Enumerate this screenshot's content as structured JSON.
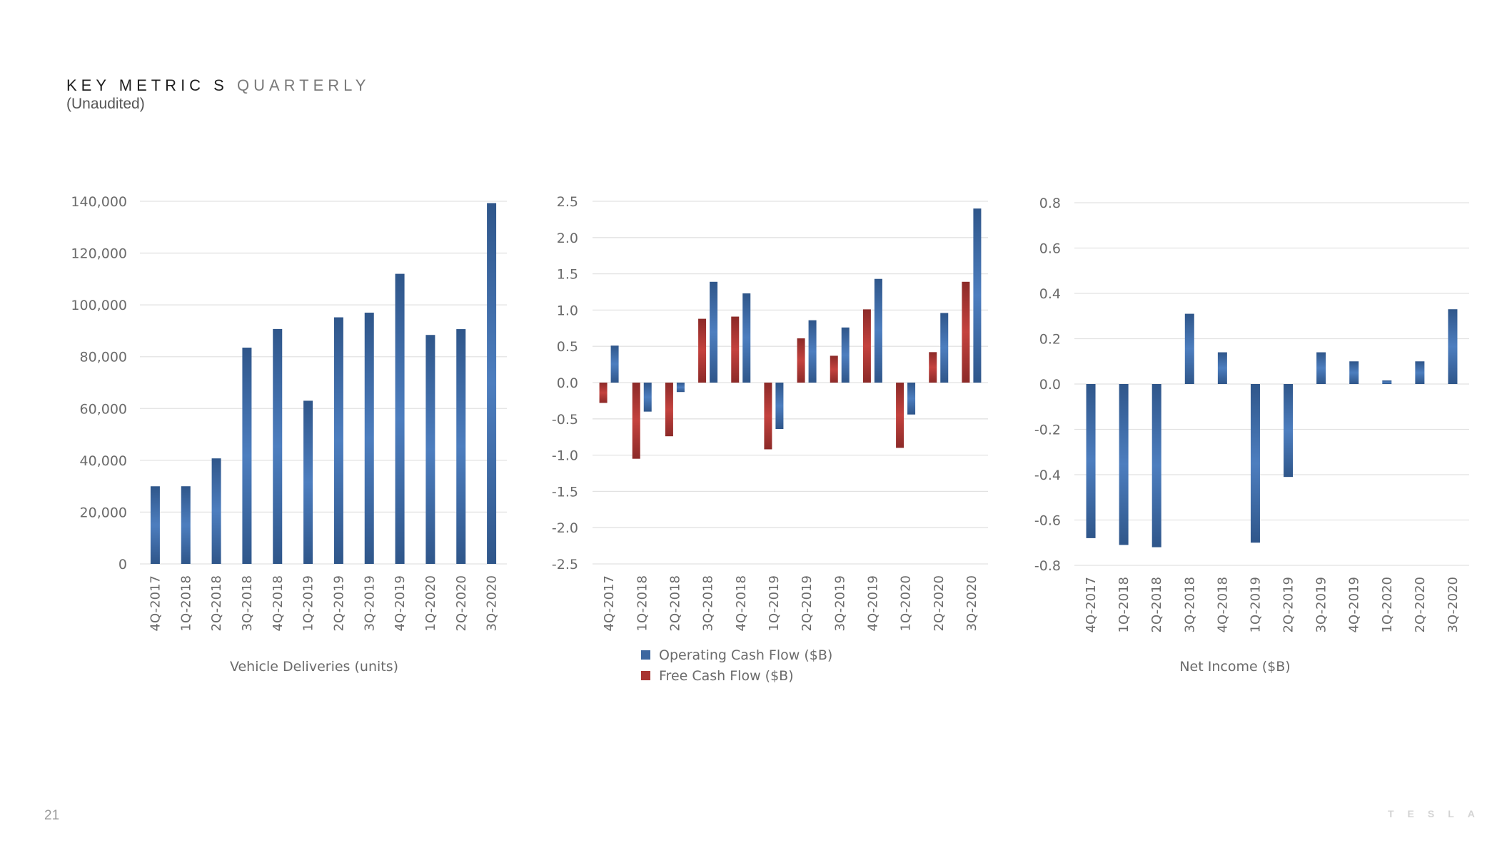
{
  "header": {
    "title_main": "KEY METRIC S",
    "title_sub": "QUARTERLY",
    "subtitle": "(Unaudited)"
  },
  "footer": {
    "page_number": "21",
    "logo_text": "TESLA"
  },
  "colors": {
    "blue": "#3d67a0",
    "red": "#a83532",
    "grid": "#e2e2e2",
    "text": "#6b6b6b"
  },
  "chart_data": [
    {
      "type": "bar",
      "xlabel": "Vehicle Deliveries (units)",
      "ylim": [
        0,
        140000
      ],
      "yticks": [
        "0",
        "20,000",
        "40,000",
        "60,000",
        "80,000",
        "100,000",
        "120,000",
        "140,000"
      ],
      "grid": true,
      "categories": [
        "4Q-2017",
        "1Q-2018",
        "2Q-2018",
        "3Q-2018",
        "4Q-2018",
        "1Q-2019",
        "2Q-2019",
        "3Q-2019",
        "4Q-2019",
        "1Q-2020",
        "2Q-2020",
        "3Q-2020"
      ],
      "series": [
        {
          "values": [
            29967,
            29980,
            40740,
            83500,
            90700,
            63000,
            95200,
            97000,
            112000,
            88400,
            90650,
            139300
          ],
          "color": "#3d67a0"
        }
      ]
    },
    {
      "type": "bar",
      "ylim": [
        -2.5,
        2.5
      ],
      "yticks": [
        "-2.5",
        "-2.0",
        "-1.5",
        "-1.0",
        "-0.5",
        "0.0",
        "0.5",
        "1.0",
        "1.5",
        "2.0",
        "2.5"
      ],
      "grid": true,
      "legend_position": "bottom",
      "categories": [
        "4Q-2017",
        "1Q-2018",
        "2Q-2018",
        "3Q-2018",
        "4Q-2018",
        "1Q-2019",
        "2Q-2019",
        "3Q-2019",
        "4Q-2019",
        "1Q-2020",
        "2Q-2020",
        "3Q-2020"
      ],
      "series": [
        {
          "name": "Free Cash Flow ($B)",
          "values": [
            -0.28,
            -1.05,
            -0.74,
            0.88,
            0.91,
            -0.92,
            0.61,
            0.37,
            1.01,
            -0.9,
            0.42,
            1.39
          ],
          "color": "#a83532"
        },
        {
          "name": "Operating Cash Flow ($B)",
          "values": [
            0.51,
            -0.4,
            -0.13,
            1.39,
            1.23,
            -0.64,
            0.86,
            0.76,
            1.43,
            -0.44,
            0.96,
            2.4
          ],
          "color": "#3d67a0"
        }
      ]
    },
    {
      "type": "bar",
      "xlabel": "Net Income ($B)",
      "ylim": [
        -0.8,
        0.8
      ],
      "yticks": [
        "-0.8",
        "-0.6",
        "-0.4",
        "-0.2",
        "0.0",
        "0.2",
        "0.4",
        "0.6",
        "0.8"
      ],
      "grid": true,
      "categories": [
        "4Q-2017",
        "1Q-2018",
        "2Q-2018",
        "3Q-2018",
        "4Q-2018",
        "1Q-2019",
        "2Q-2019",
        "3Q-2019",
        "4Q-2019",
        "1Q-2020",
        "2Q-2020",
        "3Q-2020"
      ],
      "series": [
        {
          "values": [
            -0.68,
            -0.71,
            -0.72,
            0.31,
            0.14,
            -0.7,
            -0.41,
            0.14,
            0.1,
            0.016,
            0.1,
            0.33
          ],
          "color": "#3d67a0"
        }
      ]
    }
  ]
}
